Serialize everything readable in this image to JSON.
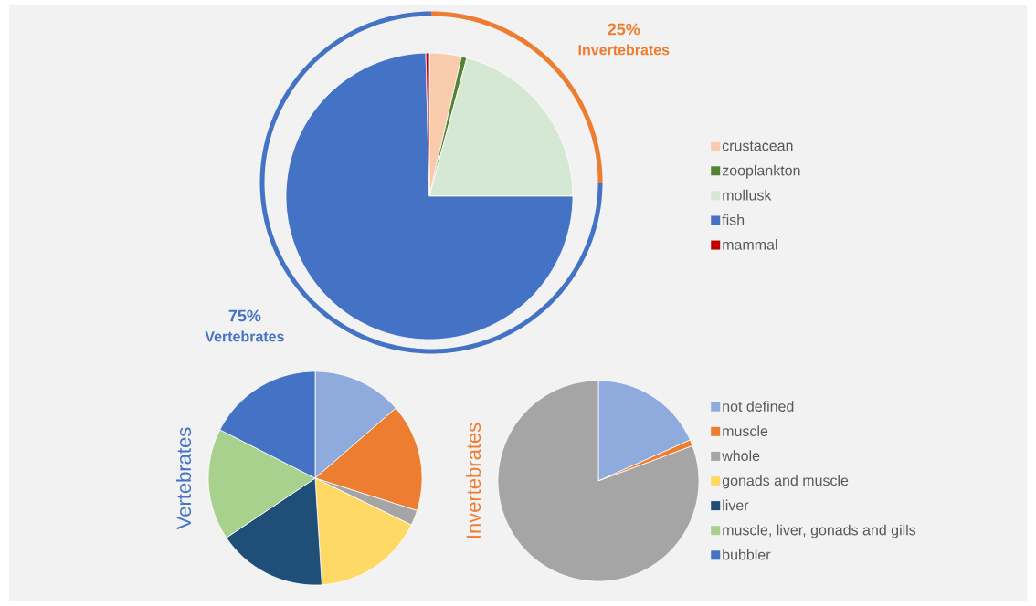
{
  "chart_data": [
    {
      "type": "pie",
      "categories": [
        "crustacean",
        "zooplankton",
        "mollusk",
        "fish",
        "mammal"
      ],
      "values": [
        3.6,
        0.6,
        20.8,
        74.6,
        0.4
      ],
      "colors": [
        "#f8cbad",
        "#548235",
        "#d5e8d4",
        "#4472c4",
        "#c00000"
      ],
      "legend": "right"
    },
    {
      "type": "donut",
      "categories": [
        "Invertebrates",
        "Vertebrates"
      ],
      "values": [
        25,
        75
      ],
      "colors": [
        "#ed7d31",
        "#4472c4"
      ],
      "value_labels": [
        "25%",
        "75%"
      ]
    },
    {
      "type": "pie",
      "title": "Vertebrates",
      "categories": [
        "not defined",
        "muscle",
        "whole",
        "gonads and muscle",
        "liver",
        "muscle, liver, gonads and gills",
        "bubbler"
      ],
      "values": [
        13.6,
        16.3,
        2.3,
        16.8,
        16.6,
        16.9,
        17.5
      ],
      "colors": [
        "#8faadc",
        "#ed7d31",
        "#a5a5a5",
        "#ffd966",
        "#1f4e79",
        "#a9d18e",
        "#4472c4"
      ],
      "legend": "right"
    },
    {
      "type": "pie",
      "title": "Invertebrates",
      "categories": [
        null,
        null,
        null,
        null,
        null,
        null,
        null
      ],
      "values": [
        18.3,
        1,
        80.7,
        0,
        0,
        0,
        0
      ],
      "colors": [
        "#8faadc",
        "#ed7d31",
        "#a5a5a5",
        "#ffd966",
        "#1f4e79",
        "#a9d18e",
        "#4472c4"
      ]
    }
  ]
}
